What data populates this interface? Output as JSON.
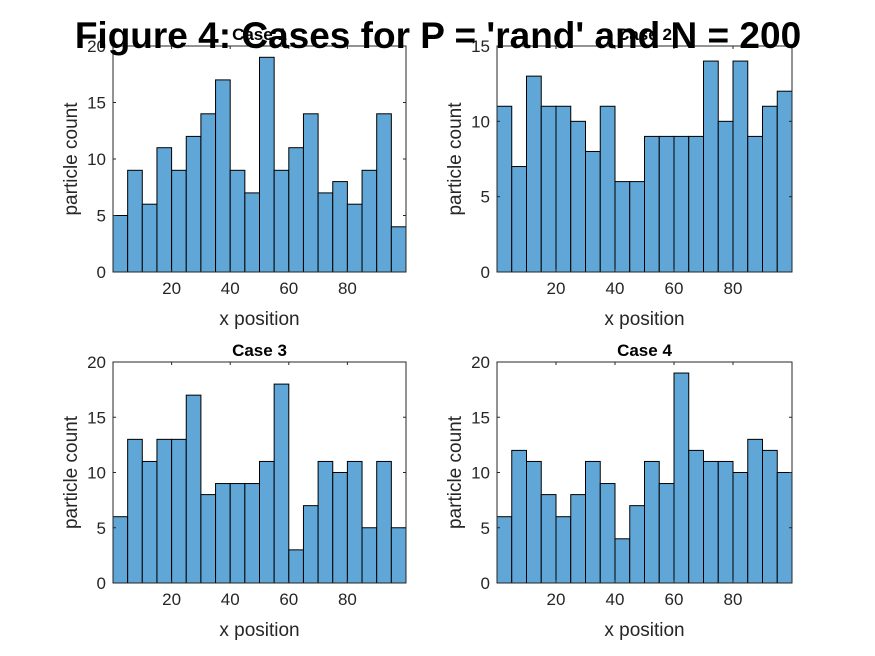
{
  "figure_title": "Figure 4: Cases for P = 'rand' and N = 200",
  "colors": {
    "bar_fill": "#60a6d6",
    "bar_edge": "#000000",
    "axis": "#262626"
  },
  "chart_data": [
    {
      "type": "bar",
      "title": "Case 1",
      "xlabel": "x position",
      "ylabel": "particle count",
      "xlim": [
        0,
        100
      ],
      "ylim": [
        0,
        20
      ],
      "xticks": [
        20,
        40,
        60,
        80
      ],
      "yticks": [
        0,
        5,
        10,
        15,
        20
      ],
      "bin_width": 5,
      "bin_starts": [
        0,
        5,
        10,
        15,
        20,
        25,
        30,
        35,
        40,
        45,
        50,
        55,
        60,
        65,
        70,
        75,
        80,
        85,
        90,
        95
      ],
      "values": [
        5,
        9,
        6,
        11,
        9,
        12,
        14,
        17,
        9,
        7,
        19,
        9,
        11,
        14,
        7,
        8,
        6,
        9,
        14,
        4
      ]
    },
    {
      "type": "bar",
      "title": "Case 2",
      "xlabel": "x position",
      "ylabel": "particle count",
      "xlim": [
        0,
        100
      ],
      "ylim": [
        0,
        15
      ],
      "xticks": [
        20,
        40,
        60,
        80
      ],
      "yticks": [
        0,
        5,
        10,
        15
      ],
      "bin_width": 5,
      "bin_starts": [
        0,
        5,
        10,
        15,
        20,
        25,
        30,
        35,
        40,
        45,
        50,
        55,
        60,
        65,
        70,
        75,
        80,
        85,
        90,
        95
      ],
      "values": [
        11,
        7,
        13,
        11,
        11,
        10,
        8,
        11,
        6,
        6,
        9,
        9,
        9,
        9,
        14,
        10,
        14,
        9,
        11,
        12
      ]
    },
    {
      "type": "bar",
      "title": "Case 3",
      "xlabel": "x position",
      "ylabel": "particle count",
      "xlim": [
        0,
        100
      ],
      "ylim": [
        0,
        20
      ],
      "xticks": [
        20,
        40,
        60,
        80
      ],
      "yticks": [
        0,
        5,
        10,
        15,
        20
      ],
      "bin_width": 5,
      "bin_starts": [
        0,
        5,
        10,
        15,
        20,
        25,
        30,
        35,
        40,
        45,
        50,
        55,
        60,
        65,
        70,
        75,
        80,
        85,
        90,
        95
      ],
      "values": [
        6,
        13,
        11,
        13,
        13,
        17,
        8,
        9,
        9,
        9,
        11,
        18,
        3,
        7,
        11,
        10,
        11,
        5,
        11,
        5
      ]
    },
    {
      "type": "bar",
      "title": "Case 4",
      "xlabel": "x position",
      "ylabel": "particle count",
      "xlim": [
        0,
        100
      ],
      "ylim": [
        0,
        20
      ],
      "xticks": [
        20,
        40,
        60,
        80
      ],
      "yticks": [
        0,
        5,
        10,
        15,
        20
      ],
      "bin_width": 5,
      "bin_starts": [
        0,
        5,
        10,
        15,
        20,
        25,
        30,
        35,
        40,
        45,
        50,
        55,
        60,
        65,
        70,
        75,
        80,
        85,
        90,
        95
      ],
      "values": [
        6,
        12,
        11,
        8,
        6,
        8,
        11,
        9,
        4,
        7,
        11,
        9,
        19,
        12,
        11,
        11,
        10,
        13,
        12,
        10
      ]
    }
  ]
}
